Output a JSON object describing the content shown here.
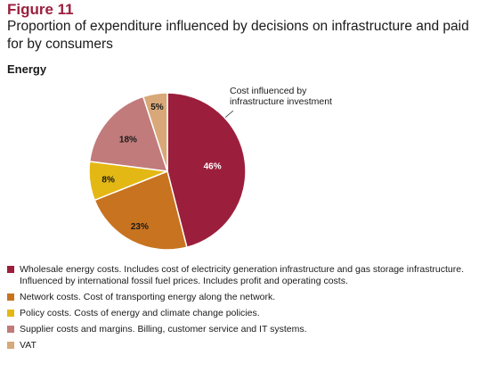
{
  "figure": {
    "number": "Figure 11",
    "title": "Proportion of expenditure influenced by decisions on infrastructure and paid for by consumers",
    "subtitle": "Energy",
    "callout": "Cost influenced by infrastructure investment"
  },
  "colors": {
    "wholesale": "#9b1f3c",
    "network": "#c8731f",
    "policy": "#e4b814",
    "supplier": "#c17b7b",
    "vat": "#d8a878"
  },
  "chart_data": {
    "type": "pie",
    "title": "Energy",
    "slices": [
      {
        "label": "46%",
        "value": 46,
        "color": "#9b1f3c"
      },
      {
        "label": "23%",
        "value": 23,
        "color": "#c8731f"
      },
      {
        "label": "8%",
        "value": 8,
        "color": "#e4b814"
      },
      {
        "label": "18%",
        "value": 18,
        "color": "#c17b7b"
      },
      {
        "label": "5%",
        "value": 5,
        "color": "#d8a878"
      }
    ]
  },
  "legend": [
    {
      "name": "Wholesale energy costs.",
      "desc": " Includes cost of electricity generation infrastructure and gas storage infrastructure. Influenced by international fossil fuel prices. Includes profit and operating costs.",
      "color": "#9b1f3c"
    },
    {
      "name": "Network costs.",
      "desc": " Cost of transporting energy along the network.",
      "color": "#c8731f"
    },
    {
      "name": "Policy costs.",
      "desc": " Costs of energy and climate change policies.",
      "color": "#e4b814"
    },
    {
      "name": "Supplier costs and margins.",
      "desc": " Billing, customer service and IT systems.",
      "color": "#c17b7b"
    },
    {
      "name": "VAT",
      "desc": "",
      "color": "#d8a878"
    }
  ]
}
